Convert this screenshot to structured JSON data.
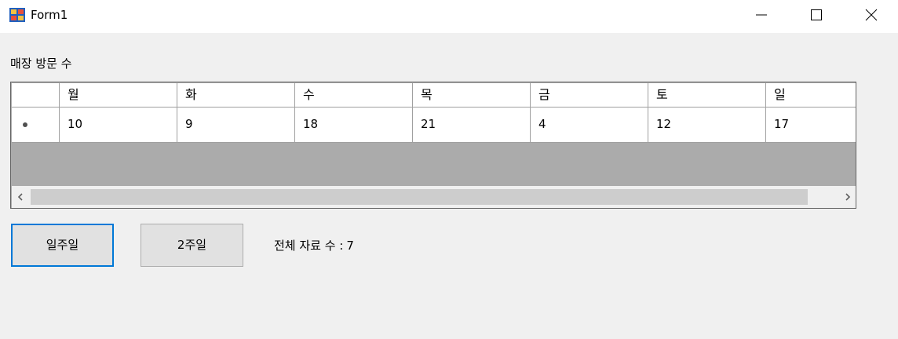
{
  "window": {
    "title": "Form1"
  },
  "label": {
    "visits": "매장 방문 수"
  },
  "grid": {
    "columns": [
      "월",
      "화",
      "수",
      "목",
      "금",
      "토",
      "일"
    ],
    "rows": [
      [
        "10",
        "9",
        "18",
        "21",
        "4",
        "12",
        "17"
      ]
    ]
  },
  "buttons": {
    "week1": "일주일",
    "week2": "2주일"
  },
  "total": {
    "label": "전체 자료 수 :",
    "value": "7"
  },
  "colors": {
    "focus_border": "#0078d7",
    "grid_background": "#ababab"
  }
}
